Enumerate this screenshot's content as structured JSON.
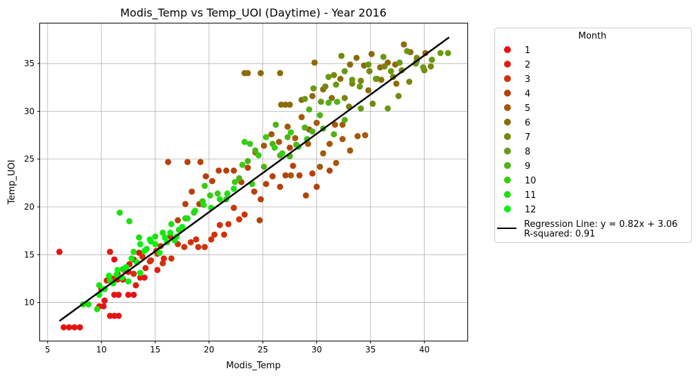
{
  "chart_data": {
    "type": "scatter",
    "title": "Modis_Temp vs Temp_UOI (Daytime) - Year 2016",
    "xlabel": "Modis_Temp",
    "ylabel": "Temp_UOI",
    "xlim": [
      4.3,
      44.0
    ],
    "ylim": [
      6.0,
      39.2
    ],
    "xticks": [
      5,
      10,
      15,
      20,
      25,
      30,
      35,
      40
    ],
    "yticks": [
      10,
      15,
      20,
      25,
      30,
      35
    ],
    "grid": true,
    "legend": {
      "title": "Month",
      "placement": "outside-right"
    },
    "series": [
      {
        "name": "1",
        "color": "#e61313",
        "points": [
          [
            6.1,
            15.3
          ],
          [
            6.5,
            7.4
          ],
          [
            7.0,
            7.4
          ],
          [
            7.5,
            7.4
          ],
          [
            8.0,
            7.4
          ],
          [
            9.8,
            9.6
          ],
          [
            10.2,
            9.6
          ],
          [
            10.3,
            10.2
          ],
          [
            10.8,
            8.6
          ],
          [
            11.2,
            8.6
          ],
          [
            11.6,
            8.6
          ],
          [
            11.2,
            10.8
          ],
          [
            11.6,
            10.8
          ],
          [
            11.5,
            12.4
          ],
          [
            12.0,
            12.4
          ],
          [
            11.2,
            14.5
          ],
          [
            12.5,
            13.2
          ],
          [
            13.0,
            14.5
          ],
          [
            13.5,
            15.2
          ],
          [
            12.5,
            10.8
          ],
          [
            13.0,
            10.8
          ],
          [
            14.0,
            12.6
          ]
        ]
      },
      {
        "name": "2",
        "color": "#e0200f",
        "points": [
          [
            10.0,
            11.4
          ],
          [
            10.5,
            12.3
          ],
          [
            10.8,
            15.3
          ],
          [
            11.0,
            12.5
          ],
          [
            11.5,
            13.0
          ],
          [
            12.1,
            13.4
          ],
          [
            12.6,
            14.0
          ],
          [
            13.2,
            11.8
          ],
          [
            13.6,
            12.6
          ],
          [
            14.1,
            13.6
          ],
          [
            14.6,
            14.4
          ],
          [
            15.1,
            15.4
          ],
          [
            15.2,
            13.4
          ],
          [
            15.8,
            14.6
          ]
        ]
      },
      {
        "name": "3",
        "color": "#cf330c",
        "points": [
          [
            13.0,
            13.0
          ],
          [
            13.8,
            14.8
          ],
          [
            14.5,
            14.3
          ],
          [
            15.2,
            15.1
          ],
          [
            15.7,
            14.1
          ],
          [
            16.5,
            14.6
          ],
          [
            17.1,
            16.1
          ],
          [
            17.7,
            15.8
          ],
          [
            18.3,
            16.3
          ],
          [
            18.8,
            16.6
          ],
          [
            19.0,
            15.8
          ],
          [
            19.6,
            15.8
          ],
          [
            20.2,
            16.6
          ],
          [
            20.5,
            17.1
          ],
          [
            21.0,
            18.1
          ],
          [
            21.4,
            17.1
          ],
          [
            21.8,
            18.2
          ],
          [
            22.3,
            19.9
          ],
          [
            22.8,
            18.7
          ],
          [
            23.3,
            19.2
          ]
        ]
      },
      {
        "name": "4",
        "color": "#b5420c",
        "points": [
          [
            15.5,
            15.9
          ],
          [
            16.4,
            16.9
          ],
          [
            17.1,
            18.6
          ],
          [
            17.8,
            20.3
          ],
          [
            18.4,
            21.6
          ],
          [
            19.1,
            20.3
          ],
          [
            19.7,
            23.2
          ],
          [
            20.3,
            22.7
          ],
          [
            20.9,
            23.8
          ],
          [
            21.6,
            23.8
          ],
          [
            22.3,
            23.8
          ],
          [
            23.0,
            22.6
          ],
          [
            23.6,
            24.1
          ],
          [
            24.2,
            21.6
          ],
          [
            24.8,
            20.8
          ],
          [
            25.3,
            22.4
          ],
          [
            25.9,
            23.2
          ],
          [
            26.6,
            22.1
          ],
          [
            27.1,
            23.3
          ],
          [
            27.8,
            24.3
          ],
          [
            28.4,
            23.3
          ],
          [
            29.0,
            21.2
          ],
          [
            29.6,
            23.5
          ],
          [
            30.0,
            22.1
          ],
          [
            31.2,
            23.8
          ],
          [
            16.2,
            24.7
          ],
          [
            18.0,
            24.7
          ],
          [
            19.2,
            24.7
          ],
          [
            27.5,
            26.2
          ],
          [
            24.7,
            18.6
          ]
        ]
      },
      {
        "name": "5",
        "color": "#a6570a",
        "points": [
          [
            24.3,
            25.7
          ],
          [
            25.1,
            26.4
          ],
          [
            25.8,
            27.6
          ],
          [
            26.5,
            26.8
          ],
          [
            27.3,
            28.4
          ],
          [
            28.0,
            27.2
          ],
          [
            28.6,
            29.4
          ],
          [
            29.3,
            28.1
          ],
          [
            30.0,
            28.8
          ],
          [
            30.6,
            25.6
          ],
          [
            31.2,
            26.6
          ],
          [
            31.8,
            24.6
          ],
          [
            32.4,
            27.1
          ],
          [
            33.1,
            25.9
          ],
          [
            33.8,
            27.4
          ],
          [
            34.5,
            27.5
          ],
          [
            30.3,
            24.2
          ],
          [
            27.6,
            23.3
          ],
          [
            29.2,
            26.6
          ],
          [
            31.7,
            28.6
          ],
          [
            32.4,
            28.6
          ]
        ]
      },
      {
        "name": "6",
        "color": "#8c6b0a",
        "points": [
          [
            23.3,
            34.0
          ],
          [
            23.6,
            34.0
          ],
          [
            24.8,
            34.0
          ],
          [
            26.6,
            34.0
          ],
          [
            26.7,
            30.7
          ],
          [
            27.1,
            30.7
          ],
          [
            27.5,
            30.7
          ],
          [
            29.8,
            35.1
          ],
          [
            28.6,
            31.2
          ],
          [
            29.6,
            31.6
          ],
          [
            30.6,
            32.3
          ],
          [
            31.4,
            31.4
          ],
          [
            32.2,
            33.4
          ],
          [
            33.1,
            34.9
          ],
          [
            33.7,
            35.6
          ],
          [
            34.4,
            34.8
          ],
          [
            35.1,
            36.0
          ],
          [
            35.9,
            34.6
          ],
          [
            36.6,
            35.1
          ],
          [
            37.3,
            34.9
          ],
          [
            38.1,
            37.0
          ],
          [
            38.7,
            36.2
          ],
          [
            39.3,
            35.3
          ],
          [
            40.1,
            36.1
          ],
          [
            34.8,
            32.2
          ],
          [
            36.0,
            33.3
          ],
          [
            37.4,
            32.9
          ]
        ]
      },
      {
        "name": "7",
        "color": "#7a850e",
        "points": [
          [
            30.8,
            32.6
          ],
          [
            31.6,
            33.8
          ],
          [
            32.6,
            31.4
          ],
          [
            33.3,
            32.9
          ],
          [
            34.1,
            33.2
          ],
          [
            34.9,
            34.2
          ],
          [
            35.6,
            33.4
          ],
          [
            36.3,
            34.7
          ],
          [
            37.1,
            33.6
          ],
          [
            37.9,
            34.3
          ],
          [
            38.6,
            33.1
          ],
          [
            39.3,
            35.6
          ],
          [
            40.0,
            34.3
          ],
          [
            40.6,
            34.7
          ],
          [
            33.0,
            30.5
          ],
          [
            35.2,
            30.8
          ],
          [
            37.6,
            31.6
          ],
          [
            32.3,
            35.8
          ]
        ]
      },
      {
        "name": "8",
        "color": "#699912",
        "points": [
          [
            28.9,
            31.3
          ],
          [
            29.7,
            32.4
          ],
          [
            30.4,
            31.0
          ],
          [
            31.1,
            33.6
          ],
          [
            31.8,
            32.8
          ],
          [
            32.6,
            34.2
          ],
          [
            33.3,
            33.3
          ],
          [
            34.0,
            32.6
          ],
          [
            34.8,
            34.9
          ],
          [
            35.5,
            33.4
          ],
          [
            36.2,
            35.7
          ],
          [
            36.9,
            34.2
          ],
          [
            37.7,
            35.1
          ],
          [
            38.4,
            36.3
          ],
          [
            39.2,
            35.0
          ],
          [
            39.9,
            34.6
          ],
          [
            40.7,
            35.4
          ],
          [
            41.5,
            36.1
          ],
          [
            42.2,
            36.1
          ],
          [
            36.6,
            30.3
          ],
          [
            34.1,
            30.3
          ]
        ]
      },
      {
        "name": "9",
        "color": "#4fb316",
        "points": [
          [
            22.8,
            23.0
          ],
          [
            23.6,
            24.8
          ],
          [
            24.3,
            25.9
          ],
          [
            25.1,
            24.2
          ],
          [
            25.9,
            26.6
          ],
          [
            26.6,
            25.4
          ],
          [
            27.3,
            27.3
          ],
          [
            28.1,
            26.5
          ],
          [
            28.9,
            28.3
          ],
          [
            29.6,
            27.9
          ],
          [
            30.3,
            29.6
          ],
          [
            31.1,
            30.9
          ],
          [
            31.9,
            31.0
          ],
          [
            32.6,
            29.1
          ],
          [
            30.6,
            28.2
          ],
          [
            31.6,
            27.6
          ],
          [
            27.5,
            25.3
          ],
          [
            26.2,
            28.6
          ],
          [
            29.3,
            30.2
          ]
        ]
      },
      {
        "name": "10",
        "color": "#38cc14",
        "points": [
          [
            17.8,
            18.8
          ],
          [
            18.6,
            19.4
          ],
          [
            19.4,
            20.6
          ],
          [
            20.1,
            21.2
          ],
          [
            20.8,
            21.4
          ],
          [
            21.6,
            20.8
          ],
          [
            22.4,
            22.6
          ],
          [
            23.1,
            24.4
          ],
          [
            23.8,
            26.6
          ],
          [
            24.6,
            25.4
          ],
          [
            25.3,
            27.3
          ],
          [
            26.1,
            26.2
          ],
          [
            26.8,
            25.6
          ],
          [
            27.6,
            27.8
          ],
          [
            28.3,
            26.3
          ],
          [
            29.1,
            27.1
          ],
          [
            19.6,
            22.2
          ],
          [
            23.3,
            26.8
          ],
          [
            24.0,
            22.4
          ]
        ]
      },
      {
        "name": "11",
        "color": "#1fe00f",
        "points": [
          [
            8.3,
            9.8
          ],
          [
            8.8,
            9.8
          ],
          [
            9.6,
            9.3
          ],
          [
            9.8,
            11.8
          ],
          [
            10.3,
            11.4
          ],
          [
            10.8,
            12.3
          ],
          [
            11.4,
            12.9
          ],
          [
            11.7,
            19.4
          ],
          [
            12.0,
            13.5
          ],
          [
            12.6,
            18.5
          ],
          [
            13.0,
            15.3
          ],
          [
            13.5,
            16.8
          ],
          [
            14.2,
            15.6
          ],
          [
            15.0,
            16.9
          ],
          [
            15.7,
            17.3
          ],
          [
            16.5,
            18.2
          ],
          [
            17.2,
            17.6
          ],
          [
            18.0,
            18.8
          ],
          [
            18.7,
            19.6
          ],
          [
            19.5,
            20.2
          ],
          [
            20.2,
            19.9
          ],
          [
            21.0,
            20.8
          ],
          [
            21.7,
            21.4
          ],
          [
            22.3,
            21.9
          ],
          [
            16.8,
            16.5
          ],
          [
            14.6,
            16.4
          ]
        ]
      },
      {
        "name": "12",
        "color": "#0af20f",
        "points": [
          [
            9.8,
            10.8
          ],
          [
            10.2,
            11.4
          ],
          [
            10.7,
            12.8
          ],
          [
            11.1,
            12.0
          ],
          [
            11.5,
            13.4
          ],
          [
            11.9,
            12.6
          ],
          [
            12.3,
            13.7
          ],
          [
            12.8,
            14.6
          ],
          [
            13.3,
            14.2
          ],
          [
            13.6,
            16.1
          ],
          [
            14.0,
            15.4
          ],
          [
            14.5,
            16.6
          ],
          [
            15.0,
            16.1
          ],
          [
            15.4,
            15.2
          ],
          [
            15.9,
            16.8
          ],
          [
            16.4,
            17.3
          ],
          [
            17.0,
            16.9
          ],
          [
            17.5,
            17.9
          ],
          [
            12.5,
            12.2
          ],
          [
            13.6,
            13.1
          ],
          [
            16.1,
            16.3
          ]
        ]
      }
    ],
    "regression": {
      "label_line1": "Regression Line: y = 0.82x + 3.06",
      "label_line2": "R-squared: 0.91",
      "slope": 0.82,
      "intercept": 3.06,
      "x_range": [
        6.1,
        42.3
      ],
      "color": "#000000"
    }
  }
}
